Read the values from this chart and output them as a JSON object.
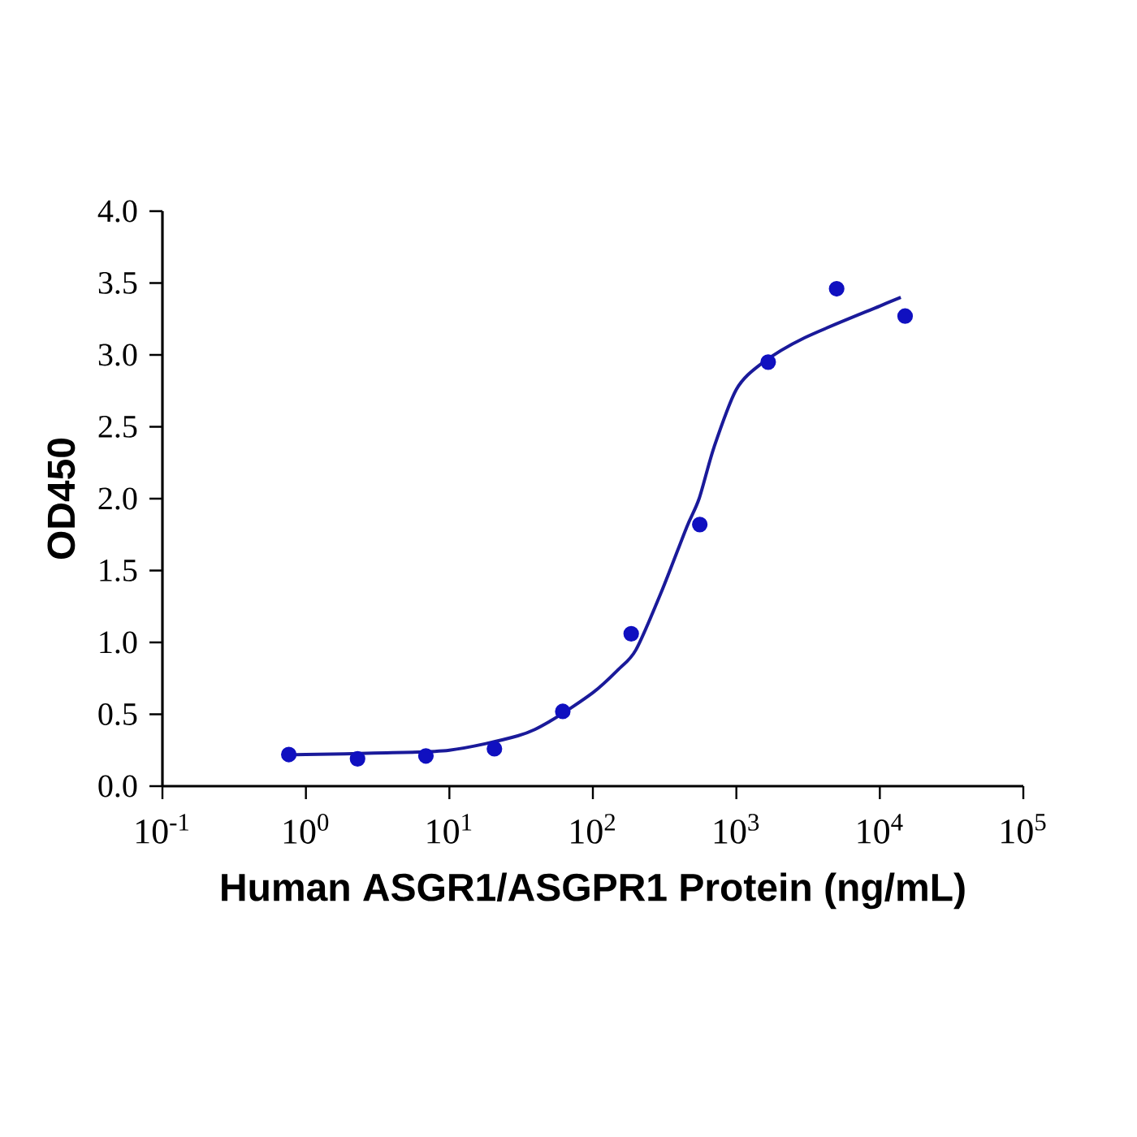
{
  "chart_data": {
    "type": "scatter",
    "xlabel": "Human ASGR1/ASGPR1 Protein (ng/mL)",
    "ylabel": "OD450",
    "log": "x",
    "xlim": [
      0.1,
      100000
    ],
    "ylim": [
      0,
      4
    ],
    "xticks": [
      {
        "value": 0.1,
        "label": "10$^{-1}$"
      },
      {
        "value": 1,
        "label": "10$^{0}$"
      },
      {
        "value": 10,
        "label": "10$^{1}$"
      },
      {
        "value": 100,
        "label": "10$^{2}$"
      },
      {
        "value": 1000,
        "label": "10$^{3}$"
      },
      {
        "value": 10000,
        "label": "10$^{4}$"
      },
      {
        "value": 100000,
        "label": "10$^{5}$"
      }
    ],
    "yticks": [
      {
        "value": 0,
        "label": "0.0"
      },
      {
        "value": 0.5,
        "label": "0.5"
      },
      {
        "value": 1,
        "label": "1.0"
      },
      {
        "value": 1.5,
        "label": "1.5"
      },
      {
        "value": 2,
        "label": "2.0"
      },
      {
        "value": 2.5,
        "label": "2.5"
      },
      {
        "value": 3,
        "label": "3.0"
      },
      {
        "value": 3.5,
        "label": "3.5"
      },
      {
        "value": 4,
        "label": "4.0"
      }
    ],
    "series": [
      {
        "marker": "circle",
        "color": "#1010c0",
        "x": [
          0.76,
          2.29,
          6.86,
          20.6,
          61.7,
          185,
          556,
          1667,
          5000,
          15000
        ],
        "values": [
          0.22,
          0.19,
          0.21,
          0.26,
          0.52,
          1.06,
          1.82,
          2.95,
          3.46,
          3.27
        ]
      },
      {
        "type": "line",
        "marker": "none",
        "color": "#1a1a9a",
        "x": [
          0.76,
          1,
          3,
          10,
          30,
          50,
          100,
          150,
          200,
          300,
          450,
          550,
          700,
          1000,
          1500,
          3000,
          10000,
          14000
        ],
        "values": [
          0.22,
          0.22,
          0.23,
          0.25,
          0.35,
          0.45,
          0.65,
          0.81,
          0.95,
          1.35,
          1.8,
          2.0,
          2.36,
          2.76,
          2.94,
          3.12,
          3.34,
          3.4
        ]
      }
    ]
  }
}
